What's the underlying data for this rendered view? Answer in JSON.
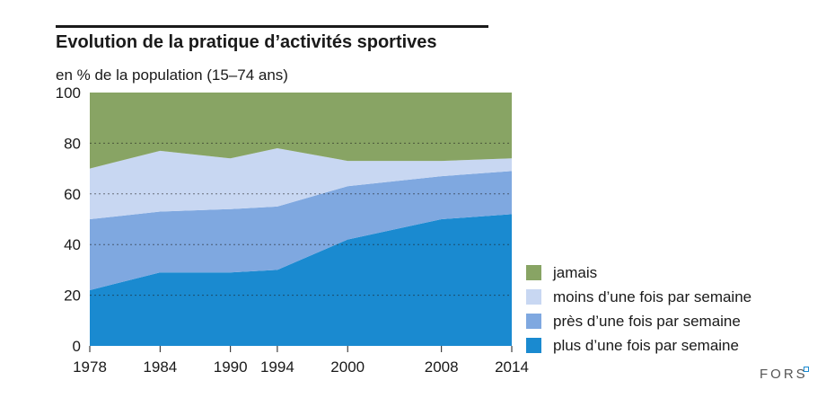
{
  "chart_data": {
    "type": "area",
    "stacked": true,
    "title": "Evolution de la pratique d’activités sportives",
    "subtitle": "en % de la population (15–74 ans)",
    "xlabel": "",
    "ylabel": "",
    "x": [
      1978,
      1984,
      1990,
      1994,
      2000,
      2008,
      2014
    ],
    "x_tick_labels": [
      "1978",
      "1984",
      "1990",
      "1994",
      "2000",
      "2008",
      "2014"
    ],
    "y_ticks": [
      0,
      20,
      40,
      60,
      80,
      100
    ],
    "y_tick_labels": [
      "0",
      "20",
      "40",
      "60",
      "80",
      "100"
    ],
    "xlim": [
      1978,
      2014
    ],
    "ylim": [
      0,
      100
    ],
    "grid": "dashed-horizontal",
    "legend_position": "right",
    "series": [
      {
        "name": "plus d’une fois par semaine",
        "color": "#1a8ad0",
        "values": [
          22,
          29,
          29,
          30,
          42,
          50,
          52
        ]
      },
      {
        "name": "près d’une fois par semaine",
        "color": "#7fa8e0",
        "values": [
          28,
          24,
          25,
          25,
          21,
          17,
          17
        ]
      },
      {
        "name": "moins d’une fois par semaine",
        "color": "#c8d7f2",
        "values": [
          20,
          24,
          20,
          23,
          10,
          6,
          5
        ]
      },
      {
        "name": "jamais",
        "color": "#88a464",
        "values": [
          30,
          23,
          26,
          22,
          27,
          27,
          26
        ]
      }
    ],
    "legend_order": [
      "jamais",
      "moins d’une fois par semaine",
      "près d’une fois par semaine",
      "plus d’une fois par semaine"
    ]
  },
  "brand": "FORS"
}
